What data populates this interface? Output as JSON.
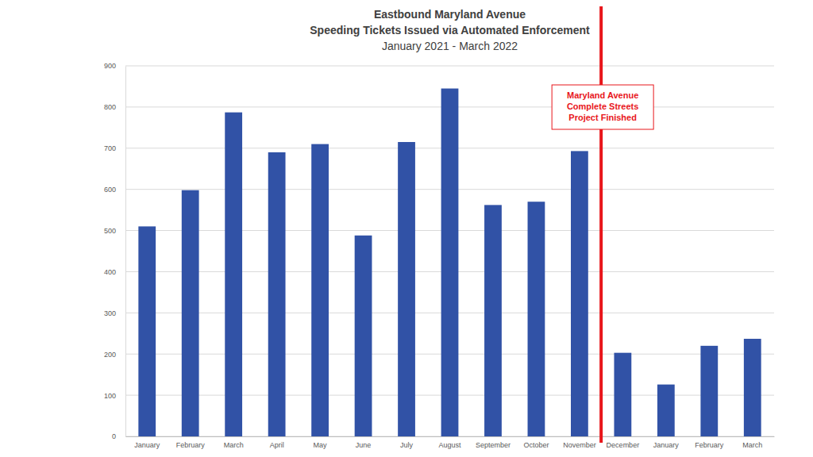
{
  "chart_data": {
    "type": "bar",
    "title": [
      "Eastbound Maryland Avenue",
      "Speeding Tickets Issued via Automated Enforcement"
    ],
    "subtitle": "January 2021 - March 2022",
    "categories": [
      "January",
      "February",
      "March",
      "April",
      "May",
      "June",
      "July",
      "August",
      "September",
      "October",
      "November",
      "December",
      "January",
      "February",
      "March"
    ],
    "values": [
      510,
      598,
      787,
      690,
      710,
      488,
      715,
      845,
      562,
      570,
      693,
      203,
      126,
      220,
      237
    ],
    "color": "#3152a6",
    "ylim": [
      0,
      900
    ],
    "yticks": [
      0,
      100,
      200,
      300,
      400,
      500,
      600,
      700,
      800,
      900
    ],
    "grid": true,
    "annotations": [
      {
        "text": [
          "Maryland Avenue",
          "Complete Streets",
          "Project Finished"
        ],
        "before": "December",
        "color": "#e8161b"
      }
    ]
  }
}
